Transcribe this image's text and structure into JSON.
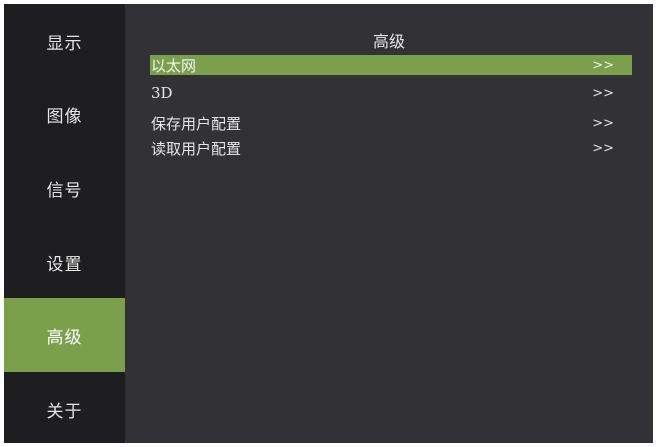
{
  "sidebar": {
    "items": [
      {
        "label": "显示"
      },
      {
        "label": "图像"
      },
      {
        "label": "信号"
      },
      {
        "label": "设置"
      },
      {
        "label": "高级"
      },
      {
        "label": "关于"
      }
    ],
    "active_index": 4
  },
  "panel": {
    "title": "高级",
    "items": [
      {
        "label": "以太网",
        "arrow": ">>"
      },
      {
        "label": "3D",
        "arrow": ">>"
      },
      {
        "label": "保存用户配置",
        "arrow": ">>"
      },
      {
        "label": "读取用户配置",
        "arrow": ">>"
      }
    ],
    "selected_index": 0
  },
  "colors": {
    "accent": "#7aa04c",
    "sidebar_bg": "#1e1e20",
    "panel_bg": "#323236",
    "text": "#e6e6e6"
  }
}
